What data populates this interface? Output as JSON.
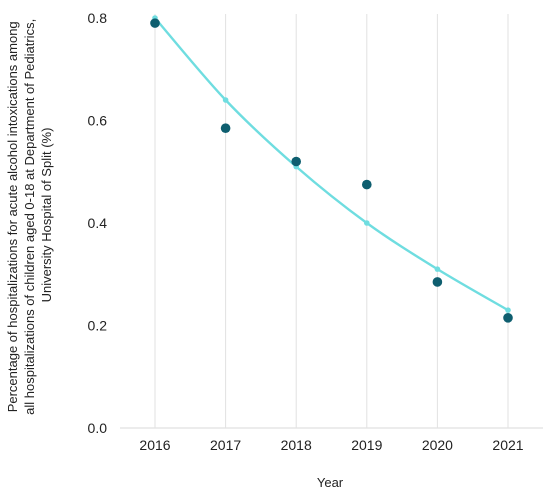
{
  "chart_data": {
    "type": "line",
    "title": "",
    "xlabel": "Year",
    "ylabel_lines": [
      "Percentage of hospitalizations for acute alcohol intoxications among",
      "all hospitalizations of children aged 0-18 at Department of Pediatrics,",
      "University Hospital of Split (%)"
    ],
    "x": [
      2016,
      2017,
      2018,
      2019,
      2020,
      2021
    ],
    "x_tick_labels": [
      "2016",
      "2017",
      "2018",
      "2019",
      "2020",
      "2021"
    ],
    "y_ticks": [
      0.0,
      0.2,
      0.4,
      0.6,
      0.8
    ],
    "y_tick_labels": [
      "0.0",
      "0.2",
      "0.4",
      "0.6",
      "0.8"
    ],
    "ylim": [
      0,
      0.8
    ],
    "grid": "vertical",
    "series": [
      {
        "kind": "scatter",
        "color": "#0e5e6f",
        "values": [
          0.79,
          0.585,
          0.52,
          0.475,
          0.285,
          0.215
        ]
      },
      {
        "kind": "line",
        "color": "#6fdde0",
        "values": [
          0.8,
          0.64,
          0.51,
          0.4,
          0.31,
          0.23
        ]
      }
    ]
  }
}
